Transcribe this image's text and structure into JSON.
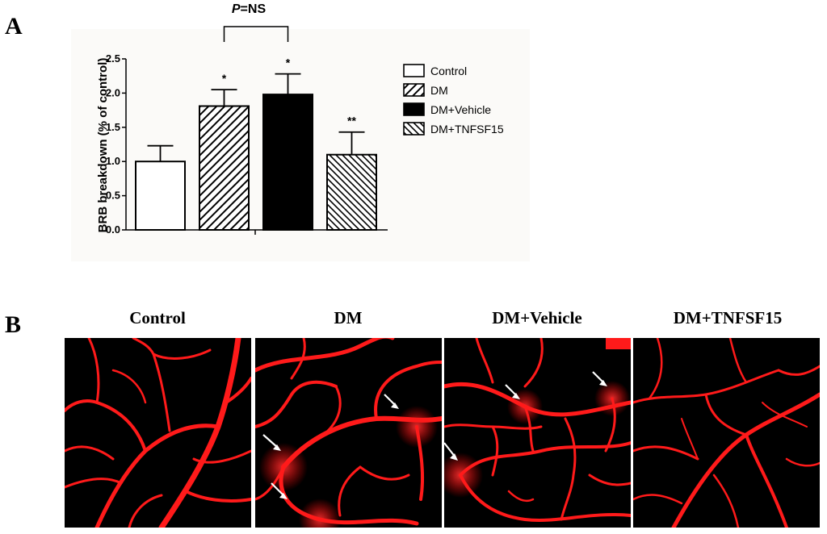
{
  "panel_labels": {
    "a": "A",
    "b": "B"
  },
  "chart_data": {
    "type": "bar",
    "ylabel": "BRB breakdown (% of control)",
    "ylim": [
      0,
      2.5
    ],
    "yticks": [
      "0.0",
      "0.5",
      "1.0",
      "1.5",
      "2.0",
      "2.5"
    ],
    "categories": [
      "Control",
      "DM",
      "DM+Vehicle",
      "DM+TNFSF15"
    ],
    "values": [
      1.0,
      1.81,
      1.98,
      1.1
    ],
    "errors": [
      0.23,
      0.24,
      0.3,
      0.33
    ],
    "significance": [
      "",
      "*",
      "*",
      "**"
    ],
    "bar_fills": [
      "white",
      "hatch-forward",
      "black",
      "hatch-back"
    ],
    "bracket_label_italic": "P",
    "bracket_label_rest": "=NS",
    "legend": [
      "Control",
      "DM",
      "DM+Vehicle",
      "DM+TNFSF15"
    ],
    "legend_position": "right",
    "grid": false
  },
  "panel_b": {
    "titles": [
      "Control",
      "DM",
      "DM+Vehicle",
      "DM+TNFSF15"
    ],
    "image_color": "#ff1a1a",
    "background_color": "#000000"
  }
}
